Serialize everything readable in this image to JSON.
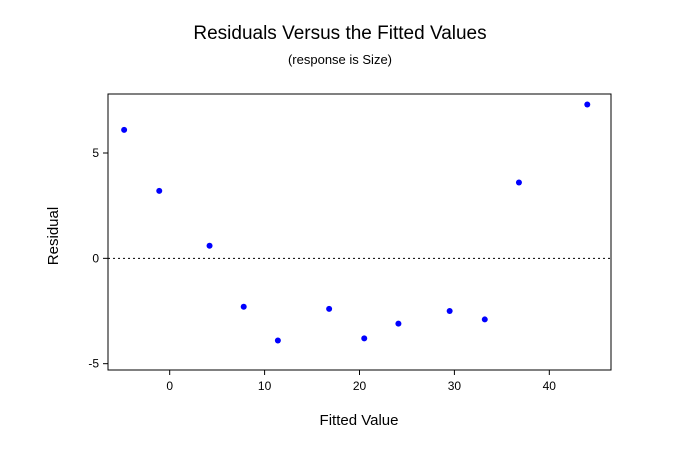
{
  "chart_data": {
    "type": "scatter",
    "title": "Residuals Versus the Fitted Values",
    "subtitle": "(response is Size)",
    "xlabel": "Fitted Value",
    "ylabel": "Residual",
    "xlim": [
      -6.5,
      46.5
    ],
    "ylim": [
      -5.3,
      7.8
    ],
    "xticks": [
      0,
      10,
      20,
      30,
      40
    ],
    "yticks": [
      -5,
      0,
      5
    ],
    "xtick_labels": [
      "0",
      "10",
      "20",
      "30",
      "40"
    ],
    "ytick_labels": [
      "-5",
      "0",
      "5"
    ],
    "reference_line": {
      "y": 0,
      "style": "dotted"
    },
    "grid": false,
    "legend": "none",
    "marker_color": "#0000ff",
    "x": [
      -4.8,
      -1.1,
      4.2,
      7.8,
      11.4,
      16.8,
      20.5,
      24.1,
      29.5,
      33.2,
      36.8,
      44.0
    ],
    "y": [
      6.1,
      3.2,
      0.6,
      -2.3,
      -3.9,
      -2.4,
      -3.8,
      -3.1,
      -2.5,
      -2.9,
      3.6,
      7.3
    ]
  }
}
